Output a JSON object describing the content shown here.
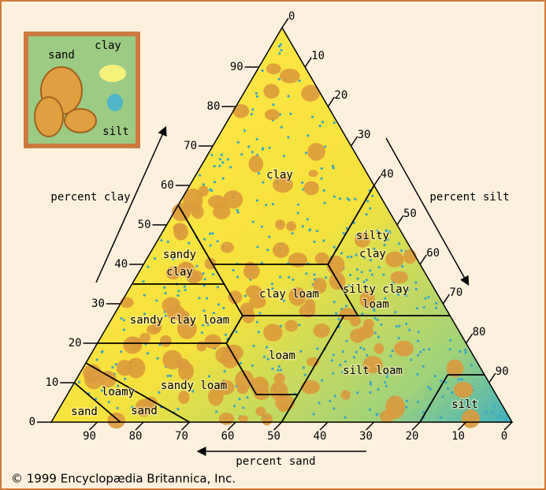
{
  "inset": {
    "labels": [
      "sand",
      "clay",
      "silt"
    ]
  },
  "axes": {
    "clay": {
      "title": "percent clay",
      "ticks": [
        0,
        10,
        20,
        30,
        40,
        50,
        60,
        70,
        80,
        90
      ]
    },
    "silt": {
      "title": "percent silt",
      "ticks": [
        0,
        10,
        20,
        30,
        40,
        50,
        60,
        70,
        80,
        90
      ]
    },
    "sand": {
      "title": "percent sand",
      "ticks": [
        90,
        80,
        70,
        60,
        50,
        40,
        30,
        20,
        10,
        0
      ]
    }
  },
  "regions": [
    {
      "lines": [
        "clay"
      ]
    },
    {
      "lines": [
        "silty",
        "clay"
      ]
    },
    {
      "lines": [
        "sandy",
        "clay"
      ]
    },
    {
      "lines": [
        "clay loam"
      ]
    },
    {
      "lines": [
        "silty clay",
        "loam"
      ]
    },
    {
      "lines": [
        "sandy clay loam"
      ]
    },
    {
      "lines": [
        "loam"
      ]
    },
    {
      "lines": [
        "silt loam"
      ]
    },
    {
      "lines": [
        "sandy loam"
      ]
    },
    {
      "lines": [
        "loamy",
        "sand"
      ]
    },
    {
      "lines": [
        "sand"
      ]
    },
    {
      "lines": [
        "silt"
      ]
    }
  ],
  "copyright": "© 1999 Encyclopædia Britannica, Inc."
}
